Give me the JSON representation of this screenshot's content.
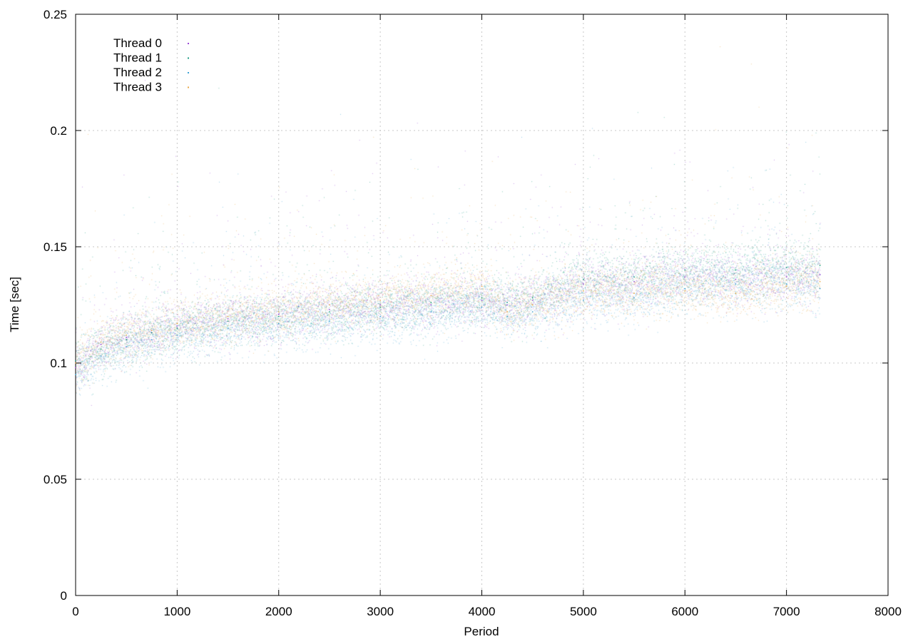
{
  "chart_data": {
    "type": "scatter",
    "title": "",
    "xlabel": "Period",
    "ylabel": "Time [sec]",
    "xlim": [
      0,
      8000
    ],
    "ylim": [
      0,
      0.25
    ],
    "x_ticks": [
      0,
      1000,
      2000,
      3000,
      4000,
      5000,
      6000,
      7000,
      8000
    ],
    "x_tick_labels": [
      "0",
      "1000",
      "2000",
      "3000",
      "4000",
      "5000",
      "6000",
      "7000",
      "8000"
    ],
    "y_ticks": [
      0,
      0.05,
      0.1,
      0.15,
      0.2,
      0.25
    ],
    "y_tick_labels": [
      "0",
      "0.05",
      "0.1",
      "0.15",
      "0.2",
      "0.25"
    ],
    "grid": true,
    "legend_position": "top-left",
    "x_extent": [
      0,
      7330
    ],
    "series": [
      {
        "name": "Thread 0",
        "color": "#9a48d6",
        "x": [
          0,
          250,
          500,
          750,
          1000,
          1500,
          2000,
          2500,
          3000,
          3500,
          4000,
          4250,
          4500,
          5000,
          5500,
          6000,
          6500,
          7000,
          7330
        ],
        "values": [
          0.098,
          0.108,
          0.111,
          0.113,
          0.116,
          0.119,
          0.121,
          0.123,
          0.125,
          0.125,
          0.127,
          0.125,
          0.127,
          0.134,
          0.135,
          0.137,
          0.136,
          0.137,
          0.138
        ]
      },
      {
        "name": "Thread 1",
        "color": "#1f9e84",
        "x": [
          0,
          250,
          500,
          750,
          1000,
          1500,
          2000,
          2500,
          3000,
          3500,
          4000,
          4250,
          4500,
          5000,
          5500,
          6000,
          6500,
          7000,
          7330
        ],
        "values": [
          0.101,
          0.106,
          0.11,
          0.113,
          0.115,
          0.118,
          0.12,
          0.122,
          0.124,
          0.126,
          0.128,
          0.126,
          0.128,
          0.136,
          0.137,
          0.14,
          0.14,
          0.141,
          0.142
        ]
      },
      {
        "name": "Thread 2",
        "color": "#3fa4d6",
        "x": [
          0,
          250,
          500,
          750,
          1000,
          1500,
          2000,
          2500,
          3000,
          3500,
          4000,
          4250,
          4500,
          5000,
          5500,
          6000,
          6500,
          7000,
          7330
        ],
        "values": [
          0.095,
          0.103,
          0.107,
          0.11,
          0.112,
          0.115,
          0.117,
          0.118,
          0.12,
          0.122,
          0.124,
          0.12,
          0.122,
          0.127,
          0.128,
          0.132,
          0.134,
          0.134,
          0.132
        ]
      },
      {
        "name": "Thread 3",
        "color": "#e8a94a",
        "x": [
          0,
          250,
          500,
          750,
          1000,
          1500,
          2000,
          2500,
          3000,
          3500,
          4000,
          4250,
          4500,
          5000,
          5500,
          6000,
          6500,
          7000,
          7330
        ],
        "values": [
          0.1,
          0.109,
          0.112,
          0.114,
          0.117,
          0.12,
          0.122,
          0.125,
          0.127,
          0.129,
          0.133,
          0.122,
          0.125,
          0.131,
          0.13,
          0.131,
          0.13,
          0.133,
          0.135
        ]
      }
    ]
  }
}
